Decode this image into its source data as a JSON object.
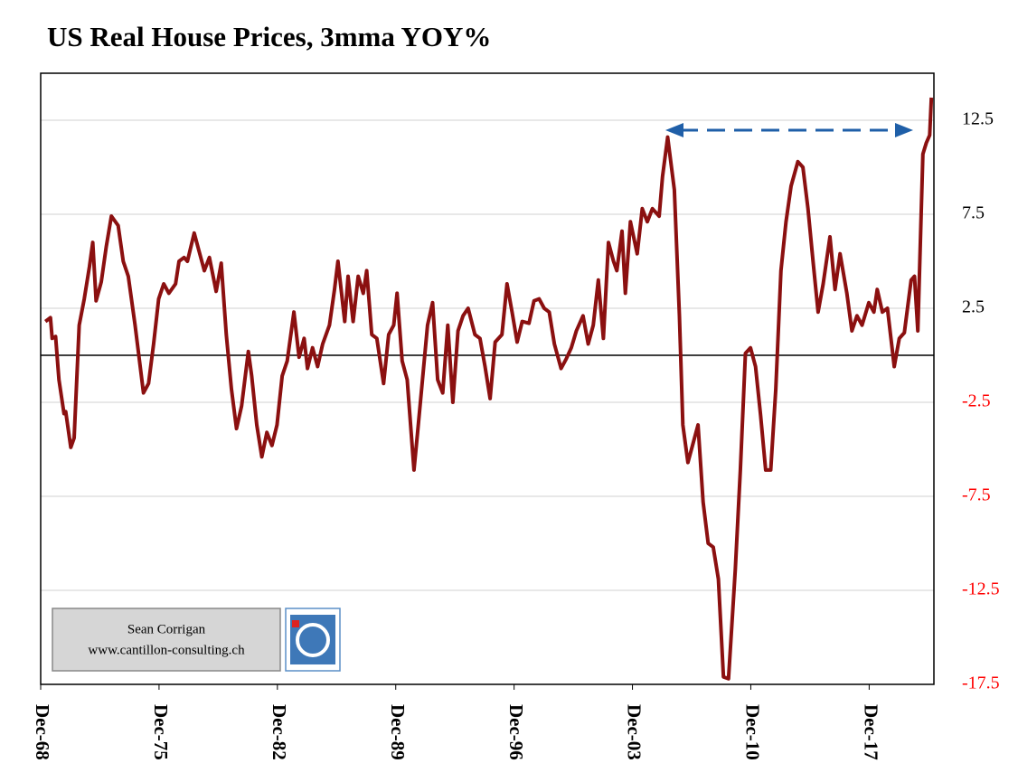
{
  "chart_data": {
    "type": "line",
    "title": "US Real House Prices, 3mma YOY%",
    "watermark": [
      "Sean Corrigan",
      "www.cantillon-consulting.ch"
    ],
    "color": "#8b1010",
    "negative_tick_color": "#ff0000",
    "grid": true,
    "xlim": [
      1968.92,
      2021.75
    ],
    "ylim": [
      -17.5,
      15
    ],
    "yticks": [
      12.5,
      7.5,
      2.5,
      -2.5,
      -7.5,
      -12.5,
      -17.5
    ],
    "xticks": [
      {
        "value": 1968.92,
        "label": "Dec-68"
      },
      {
        "value": 1975.92,
        "label": "Dec-75"
      },
      {
        "value": 1982.92,
        "label": "Dec-82"
      },
      {
        "value": 1989.92,
        "label": "Dec-89"
      },
      {
        "value": 1996.92,
        "label": "Dec-96"
      },
      {
        "value": 2003.92,
        "label": "Dec-03"
      },
      {
        "value": 2010.92,
        "label": "Dec-10"
      },
      {
        "value": 2017.92,
        "label": "Dec-17"
      }
    ],
    "x": [
      1969.2,
      1969.5,
      1969.6,
      1969.8,
      1970.0,
      1970.3,
      1970.4,
      1970.7,
      1970.9,
      1971.2,
      1971.5,
      1971.8,
      1972.0,
      1972.2,
      1972.5,
      1972.8,
      1973.1,
      1973.5,
      1973.8,
      1974.1,
      1974.5,
      1975.0,
      1975.3,
      1975.6,
      1975.9,
      1976.2,
      1976.5,
      1976.9,
      1977.1,
      1977.4,
      1977.6,
      1978.0,
      1978.3,
      1978.6,
      1978.9,
      1979.3,
      1979.6,
      1979.9,
      1980.2,
      1980.5,
      1980.8,
      1981.2,
      1981.4,
      1981.7,
      1982.0,
      1982.3,
      1982.6,
      1982.9,
      1983.2,
      1983.5,
      1983.9,
      1984.2,
      1984.5,
      1984.7,
      1985.0,
      1985.3,
      1985.6,
      1986.0,
      1986.3,
      1986.5,
      1986.9,
      1987.1,
      1987.4,
      1987.7,
      1988.0,
      1988.2,
      1988.5,
      1988.8,
      1989.2,
      1989.5,
      1989.8,
      1990.0,
      1990.3,
      1990.6,
      1991.0,
      1991.2,
      1991.5,
      1991.8,
      1992.1,
      1992.4,
      1992.7,
      1993.0,
      1993.3,
      1993.6,
      1993.9,
      1994.2,
      1994.6,
      1994.9,
      1995.2,
      1995.5,
      1995.8,
      1996.2,
      1996.5,
      1996.8,
      1997.1,
      1997.4,
      1997.8,
      1998.1,
      1998.4,
      1998.7,
      1999.0,
      1999.3,
      1999.7,
      2000.0,
      2000.3,
      2000.6,
      2001.0,
      2001.3,
      2001.6,
      2001.9,
      2002.2,
      2002.5,
      2002.8,
      2003.0,
      2003.3,
      2003.5,
      2003.8,
      2004.2,
      2004.5,
      2004.8,
      2005.1,
      2005.5,
      2005.7,
      2006.0,
      2006.4,
      2006.7,
      2006.9,
      2007.2,
      2007.5,
      2007.8,
      2008.1,
      2008.4,
      2008.7,
      2009.0,
      2009.3,
      2009.6,
      2010.0,
      2010.3,
      2010.6,
      2010.9,
      2011.2,
      2011.5,
      2011.8,
      2012.1,
      2012.4,
      2012.7,
      2013.0,
      2013.3,
      2013.7,
      2014.0,
      2014.3,
      2014.6,
      2014.9,
      2015.2,
      2015.6,
      2015.9,
      2016.2,
      2016.6,
      2016.9,
      2017.2,
      2017.5,
      2017.9,
      2018.2,
      2018.4,
      2018.7,
      2019.0,
      2019.4,
      2019.7,
      2020.0,
      2020.4,
      2020.6,
      2020.8,
      2021.1,
      2021.3,
      2021.5,
      2021.6
    ],
    "values": [
      1.8,
      2.0,
      0.9,
      1.0,
      -1.3,
      -3.1,
      -3.0,
      -4.9,
      -4.4,
      1.6,
      3.0,
      4.7,
      6.0,
      2.9,
      3.9,
      5.8,
      7.4,
      6.9,
      5.0,
      4.2,
      1.6,
      -2.0,
      -1.5,
      0.6,
      3.0,
      3.8,
      3.3,
      3.8,
      5.0,
      5.2,
      5.0,
      6.5,
      5.5,
      4.5,
      5.2,
      3.4,
      4.9,
      1.1,
      -1.8,
      -3.9,
      -2.7,
      0.2,
      -1.1,
      -3.7,
      -5.4,
      -4.1,
      -4.8,
      -3.7,
      -1.1,
      -0.3,
      2.3,
      -0.1,
      0.9,
      -0.7,
      0.4,
      -0.6,
      0.6,
      1.6,
      3.5,
      5.0,
      1.8,
      4.2,
      1.8,
      4.2,
      3.3,
      4.5,
      1.1,
      0.9,
      -1.5,
      1.1,
      1.6,
      3.3,
      -0.3,
      -1.3,
      -6.1,
      -4.2,
      -1.3,
      1.6,
      2.8,
      -1.3,
      -2.0,
      1.6,
      -2.5,
      1.3,
      2.1,
      2.5,
      1.1,
      0.9,
      -0.6,
      -2.3,
      0.7,
      1.1,
      3.8,
      2.3,
      0.7,
      1.8,
      1.7,
      2.9,
      3.0,
      2.5,
      2.3,
      0.6,
      -0.7,
      -0.2,
      0.4,
      1.3,
      2.1,
      0.6,
      1.6,
      4.0,
      0.9,
      6.0,
      5.0,
      4.5,
      6.6,
      3.3,
      7.1,
      5.4,
      7.8,
      7.1,
      7.8,
      7.4,
      9.5,
      11.6,
      8.8,
      2.1,
      -3.7,
      -5.7,
      -4.7,
      -3.7,
      -7.8,
      -10.0,
      -10.2,
      -11.9,
      -17.1,
      -17.2,
      -11.4,
      -6.1,
      0.1,
      0.4,
      -0.6,
      -3.2,
      -6.1,
      -6.1,
      -1.8,
      4.5,
      7.1,
      9.0,
      10.3,
      10.0,
      7.8,
      5.0,
      2.3,
      3.8,
      6.3,
      3.5,
      5.4,
      3.3,
      1.3,
      2.1,
      1.6,
      2.8,
      2.3,
      3.5,
      2.3,
      2.5,
      -0.6,
      0.9,
      1.2,
      4.0,
      4.2,
      1.3,
      10.7,
      11.3,
      11.7,
      13.7
    ]
  }
}
